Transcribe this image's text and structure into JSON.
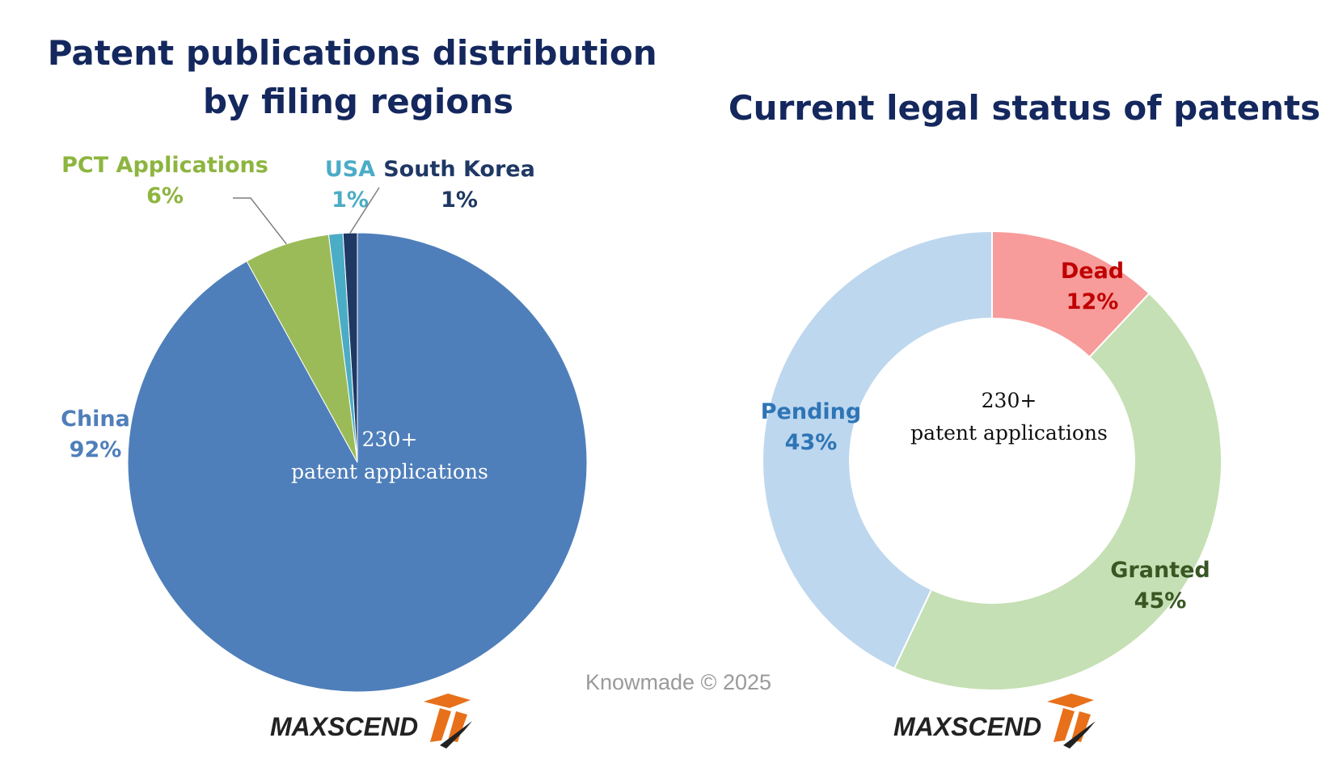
{
  "chart_data": [
    {
      "type": "pie",
      "title": "Patent publications distribution by filing regions",
      "title_lines": [
        "Patent publications distribution",
        "by filing regions"
      ],
      "center_label": [
        "230+",
        "patent applications"
      ],
      "series": [
        {
          "name": "China",
          "value": 92,
          "label": "92%",
          "color": "#4f7fba"
        },
        {
          "name": "PCT Applications",
          "value": 6,
          "label": "6%",
          "color": "#9bbb59"
        },
        {
          "name": "USA",
          "value": 1,
          "label": "1%",
          "color": "#4bacc6"
        },
        {
          "name": "South Korea",
          "value": 1,
          "label": "1%",
          "color": "#1f3864"
        }
      ],
      "label_colors": {
        "China": "#4f7fba",
        "PCT Applications": "#8db53f",
        "USA": "#4bacc6",
        "South Korea": "#1f3864"
      }
    },
    {
      "type": "pie",
      "subtype": "donut",
      "title": "Current legal status of patents",
      "center_label": [
        "230+",
        "patent applications"
      ],
      "series": [
        {
          "name": "Dead",
          "value": 12,
          "label": "12%",
          "color": "#f79c9a"
        },
        {
          "name": "Granted",
          "value": 45,
          "label": "45%",
          "color": "#c5e0b4"
        },
        {
          "name": "Pending",
          "value": 43,
          "label": "43%",
          "color": "#bdd7ee"
        }
      ],
      "label_colors": {
        "Dead": "#c00000",
        "Granted": "#385723",
        "Pending": "#2e75b6"
      }
    }
  ],
  "watermark": "Knowmade © 2025",
  "logo_text": "MAXSCEND",
  "colors": {
    "title": "#14285e",
    "logo_accent": "#e8701a",
    "logo_dark": "#222222"
  }
}
